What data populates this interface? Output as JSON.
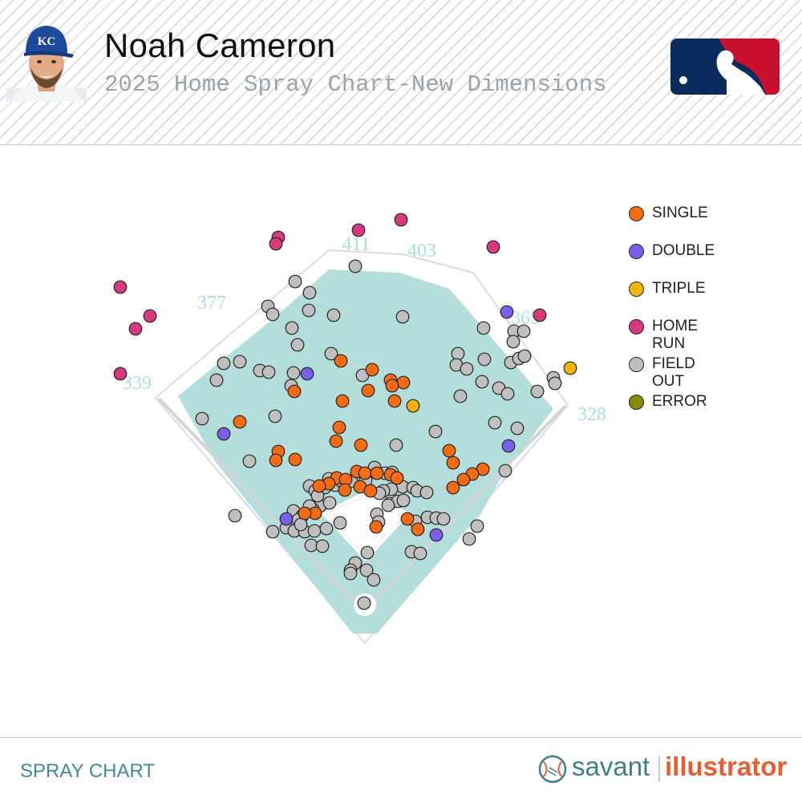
{
  "header": {
    "player_name": "Noah Cameron",
    "subtitle": "2025 Home Spray Chart-New Dimensions",
    "team_logo_text": "KC"
  },
  "footer": {
    "left_label": "SPRAY CHART",
    "brand_savant": "savant",
    "brand_illustrator": "illustrator"
  },
  "colors": {
    "field_fill": "#b3dedb",
    "field_outline": "#d9dcdf",
    "distance_text": "#a9dedd",
    "SINGLE": "#f56b13",
    "DOUBLE": "#7b5fe8",
    "TRIPLE": "#f5b208",
    "HOME RUN": "#d83a82",
    "FIELD OUT": "#bfbfbf",
    "ERROR": "#8a8a0a",
    "mlb_blue": "#0a2c5c",
    "mlb_red": "#c9102f"
  },
  "chart_data": {
    "type": "scatter",
    "title": "",
    "x_units": "spray chart x",
    "y_units": "spray chart y",
    "legend": [
      "SINGLE",
      "DOUBLE",
      "TRIPLE",
      "HOME RUN",
      "FIELD OUT",
      "ERROR"
    ],
    "legend_placement": "right",
    "distance_markers": [
      "411",
      "403",
      "377",
      "365",
      "339",
      "328"
    ],
    "series": [
      {
        "name": "SINGLE",
        "points": [
          [
            425,
            450
          ],
          [
            464,
            461
          ],
          [
            487,
            474
          ],
          [
            503,
            477
          ],
          [
            367,
            488
          ],
          [
            459,
            487
          ],
          [
            489,
            481
          ],
          [
            427,
            500
          ],
          [
            492,
            500
          ],
          [
            299,
            526
          ],
          [
            423,
            533
          ],
          [
            419,
            550
          ],
          [
            450,
            555
          ],
          [
            347,
            563
          ],
          [
            344,
            574
          ],
          [
            368,
            573
          ],
          [
            560,
            562
          ],
          [
            565,
            577
          ],
          [
            602,
            585
          ],
          [
            589,
            591
          ],
          [
            578,
            598
          ],
          [
            565,
            608
          ],
          [
            445,
            588
          ],
          [
            455,
            590
          ],
          [
            470,
            590
          ],
          [
            487,
            592
          ],
          [
            495,
            596
          ],
          [
            420,
            596
          ],
          [
            431,
            598
          ],
          [
            410,
            603
          ],
          [
            398,
            606
          ],
          [
            449,
            607
          ],
          [
            430,
            611
          ],
          [
            462,
            612
          ],
          [
            393,
            640
          ],
          [
            380,
            640
          ],
          [
            508,
            647
          ],
          [
            469,
            657
          ],
          [
            521,
            660
          ]
        ]
      },
      {
        "name": "DOUBLE",
        "points": [
          [
            632,
            389
          ],
          [
            383,
            466
          ],
          [
            279,
            541
          ],
          [
            634,
            556
          ],
          [
            357,
            647
          ],
          [
            544,
            667
          ]
        ]
      },
      {
        "name": "TRIPLE",
        "points": [
          [
            515,
            506
          ],
          [
            711,
            459
          ]
        ]
      },
      {
        "name": "HOME RUN",
        "points": [
          [
            447,
            287
          ],
          [
            500,
            274
          ],
          [
            347,
            296
          ],
          [
            344,
            304
          ],
          [
            615,
            308
          ],
          [
            150,
            358
          ],
          [
            187,
            394
          ],
          [
            169,
            410
          ],
          [
            673,
            393
          ],
          [
            150,
            466
          ]
        ]
      },
      {
        "name": "FIELD OUT",
        "points": [
          [
            443,
            332
          ],
          [
            368,
            351
          ],
          [
            386,
            365
          ],
          [
            334,
            382
          ],
          [
            385,
            387
          ],
          [
            416,
            393
          ],
          [
            502,
            395
          ],
          [
            340,
            392
          ],
          [
            364,
            409
          ],
          [
            603,
            409
          ],
          [
            641,
            413
          ],
          [
            653,
            413
          ],
          [
            640,
            426
          ],
          [
            371,
            430
          ],
          [
            413,
            441
          ],
          [
            571,
            441
          ],
          [
            279,
            453
          ],
          [
            299,
            451
          ],
          [
            324,
            462
          ],
          [
            335,
            464
          ],
          [
            366,
            465
          ],
          [
            452,
            468
          ],
          [
            569,
            455
          ],
          [
            582,
            460
          ],
          [
            604,
            448
          ],
          [
            637,
            452
          ],
          [
            647,
            447
          ],
          [
            654,
            444
          ],
          [
            270,
            474
          ],
          [
            363,
            481
          ],
          [
            601,
            476
          ],
          [
            622,
            484
          ],
          [
            633,
            491
          ],
          [
            574,
            494
          ],
          [
            670,
            488
          ],
          [
            690,
            471
          ],
          [
            692,
            478
          ],
          [
            252,
            522
          ],
          [
            343,
            519
          ],
          [
            617,
            527
          ],
          [
            645,
            534
          ],
          [
            543,
            538
          ],
          [
            311,
            575
          ],
          [
            494,
            555
          ],
          [
            630,
            587
          ],
          [
            293,
            643
          ],
          [
            595,
            656
          ],
          [
            585,
            672
          ],
          [
            340,
            663
          ],
          [
            357,
            658
          ],
          [
            367,
            662
          ],
          [
            380,
            663
          ],
          [
            392,
            662
          ],
          [
            407,
            659
          ],
          [
            424,
            652
          ],
          [
            388,
            680
          ],
          [
            402,
            681
          ],
          [
            458,
            689
          ],
          [
            443,
            702
          ],
          [
            437,
            711
          ],
          [
            457,
            711
          ],
          [
            437,
            715
          ],
          [
            466,
            723
          ],
          [
            454,
            752
          ],
          [
            513,
            688
          ],
          [
            524,
            690
          ],
          [
            386,
            606
          ],
          [
            393,
            612
          ],
          [
            405,
            608
          ],
          [
            418,
            605
          ],
          [
            410,
            597
          ],
          [
            426,
            600
          ],
          [
            438,
            600
          ],
          [
            456,
            599
          ],
          [
            467,
            583
          ],
          [
            480,
            590
          ],
          [
            489,
            589
          ],
          [
            497,
            604
          ],
          [
            502,
            607
          ],
          [
            488,
            610
          ],
          [
            478,
            612
          ],
          [
            473,
            615
          ],
          [
            486,
            628
          ],
          [
            496,
            625
          ],
          [
            503,
            624
          ],
          [
            515,
            608
          ],
          [
            520,
            612
          ],
          [
            532,
            614
          ],
          [
            484,
            630
          ],
          [
            470,
            641
          ],
          [
            472,
            651
          ],
          [
            399,
            631
          ],
          [
            411,
            627
          ],
          [
            396,
            618
          ],
          [
            366,
            637
          ],
          [
            377,
            643
          ],
          [
            390,
            635
          ],
          [
            386,
            631
          ],
          [
            372,
            648
          ],
          [
            375,
            654
          ],
          [
            518,
            650
          ],
          [
            533,
            645
          ],
          [
            544,
            646
          ],
          [
            553,
            647
          ]
        ]
      },
      {
        "name": "ERROR",
        "points": []
      }
    ]
  }
}
